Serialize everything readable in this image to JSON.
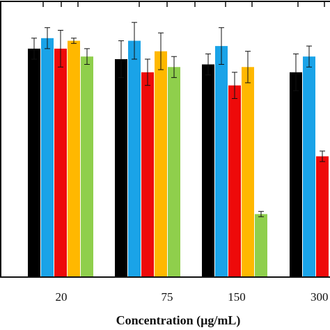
{
  "chart_data": {
    "type": "bar",
    "xlabel": "Concentration (μg/mL)",
    "categories": [
      "20",
      "75",
      "150",
      "300"
    ],
    "ylim": [
      0,
      105
    ],
    "grid": false,
    "series": [
      {
        "color": "#000000",
        "values": [
          87,
          83,
          81,
          78
        ],
        "errors": [
          4,
          7,
          4,
          7
        ]
      },
      {
        "color": "#1aa3e8",
        "values": [
          91,
          90,
          88,
          84
        ],
        "errors": [
          4,
          7,
          7,
          4
        ]
      },
      {
        "color": "#ee0a0a",
        "values": [
          87,
          78,
          73,
          46
        ],
        "errors": [
          7,
          5,
          5,
          2
        ]
      },
      {
        "color": "#ffb800",
        "values": [
          90,
          86,
          80,
          null
        ],
        "errors": [
          1,
          7,
          6,
          null
        ]
      },
      {
        "color": "#8fcf4c",
        "values": [
          84,
          80,
          24,
          null
        ],
        "errors": [
          3,
          4,
          1,
          null
        ]
      }
    ]
  }
}
